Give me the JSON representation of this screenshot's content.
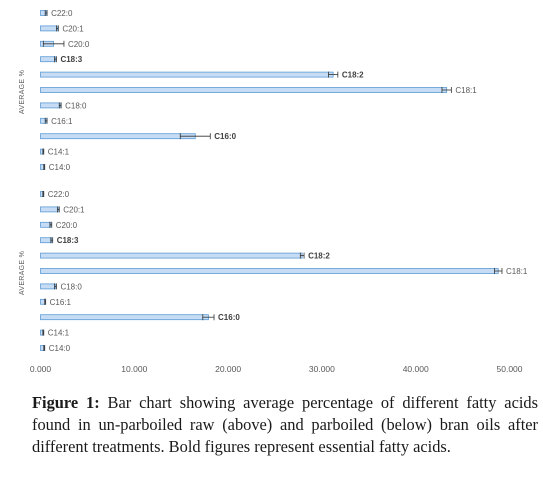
{
  "caption": {
    "label": "Figure 1:",
    "text": " Bar chart showing average percentage of different fatty acids found in un-parboiled raw (above) and parboiled (below) bran oils after different treatments. Bold figures represent essential fatty acids."
  },
  "chart_data": [
    {
      "type": "bar",
      "orientation": "horizontal",
      "panel": "un-parboiled raw (above)",
      "ylabel": "AVERAGE %",
      "categories": [
        "C22:0",
        "C20:1",
        "C20:0",
        "C18:3",
        "C18:2",
        "C18:1",
        "C18:0",
        "C16:1",
        "C16:0",
        "C14:1",
        "C14:0"
      ],
      "bold_categories": [
        "C18:3",
        "C18:2",
        "C16:0"
      ],
      "values": [
        0.6,
        1.8,
        1.4,
        1.6,
        31.2,
        43.3,
        2.1,
        0.6,
        16.5,
        0.3,
        0.4
      ],
      "errors": [
        0.1,
        0.1,
        1.1,
        0.1,
        0.5,
        0.5,
        0.1,
        0.1,
        1.6,
        0.05,
        0.05
      ],
      "xlim": [
        0,
        50
      ],
      "color": "#c5dcf4",
      "edge_color": "#5b9bd5"
    },
    {
      "type": "bar",
      "orientation": "horizontal",
      "panel": "parboiled (below)",
      "ylabel": "AVERAGE %",
      "categories": [
        "C22:0",
        "C20:1",
        "C20:0",
        "C18:3",
        "C18:2",
        "C18:1",
        "C18:0",
        "C16:1",
        "C16:0",
        "C14:1",
        "C14:0"
      ],
      "bold_categories": [
        "C18:3",
        "C18:2",
        "C16:0"
      ],
      "values": [
        0.3,
        1.9,
        1.1,
        1.2,
        27.9,
        48.8,
        1.6,
        0.5,
        17.9,
        0.3,
        0.4
      ],
      "errors": [
        0.05,
        0.1,
        0.1,
        0.1,
        0.2,
        0.4,
        0.1,
        0.05,
        0.6,
        0.05,
        0.05
      ],
      "xlim": [
        0,
        50
      ],
      "color": "#c5dcf4",
      "edge_color": "#5b9bd5"
    }
  ],
  "x_axis": {
    "ticks": [
      0,
      10,
      20,
      30,
      40,
      50
    ],
    "tick_labels": [
      "0.000",
      "10.000",
      "20.000",
      "30.000",
      "40.000",
      "50.000"
    ]
  }
}
